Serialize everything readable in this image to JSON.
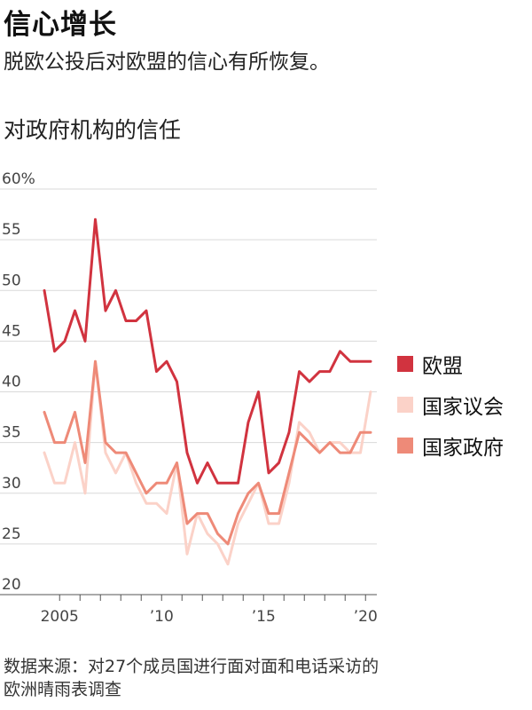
{
  "header": {
    "title": "信心增长",
    "subtitle": "脱欧公投后对欧盟的信心有所恢复。",
    "chart_heading": "对政府机构的信任"
  },
  "footer": {
    "source_line1": "数据来源：对27个成员国进行面对面和电话采访的",
    "source_line2": "欧洲晴雨表调查"
  },
  "chart_data": {
    "type": "line",
    "title": "对政府机构的信任",
    "xlabel": "",
    "ylabel": "",
    "ylim": [
      20,
      60
    ],
    "xlim": [
      2004.25,
      2020.25
    ],
    "y_ticks": [
      20,
      25,
      30,
      35,
      40,
      45,
      50,
      55,
      60
    ],
    "y_tick_labels": [
      "20",
      "25",
      "30",
      "35",
      "40",
      "45",
      "50",
      "55",
      "60%"
    ],
    "x_ticks": [
      2005,
      2006,
      2007,
      2008,
      2009,
      2010,
      2011,
      2012,
      2013,
      2014,
      2015,
      2016,
      2017,
      2018,
      2019,
      2020
    ],
    "x_tick_labels": [
      {
        "x": 2005,
        "label": "2005"
      },
      {
        "x": 2010,
        "label": "’10"
      },
      {
        "x": 2015,
        "label": "’15"
      },
      {
        "x": 2020,
        "label": "’20"
      }
    ],
    "grid": true,
    "legend_position": "right",
    "series": [
      {
        "name": "欧盟",
        "color": "#d1333f",
        "x": [
          2004.25,
          2004.75,
          2005.25,
          2005.75,
          2006.25,
          2006.75,
          2007.25,
          2007.75,
          2008.25,
          2008.75,
          2009.25,
          2009.75,
          2010.25,
          2010.75,
          2011.25,
          2011.75,
          2012.25,
          2012.75,
          2013.25,
          2013.75,
          2014.25,
          2014.75,
          2015.25,
          2015.75,
          2016.25,
          2016.75,
          2017.25,
          2017.75,
          2018.25,
          2018.75,
          2019.25,
          2019.75,
          2020.25
        ],
        "values": [
          50,
          44,
          45,
          48,
          45,
          57,
          48,
          50,
          47,
          47,
          48,
          42,
          43,
          41,
          34,
          31,
          33,
          31,
          31,
          31,
          37,
          40,
          32,
          33,
          36,
          42,
          41,
          42,
          42,
          44,
          43,
          43,
          43
        ]
      },
      {
        "name": "国家议会",
        "color": "#fbd2c8",
        "x": [
          2004.25,
          2004.75,
          2005.25,
          2005.75,
          2006.25,
          2006.75,
          2007.25,
          2007.75,
          2008.25,
          2008.75,
          2009.25,
          2009.75,
          2010.25,
          2010.75,
          2011.25,
          2011.75,
          2012.25,
          2012.75,
          2013.25,
          2013.75,
          2014.25,
          2014.75,
          2015.25,
          2015.75,
          2016.25,
          2016.75,
          2017.25,
          2017.75,
          2018.25,
          2018.75,
          2019.25,
          2019.75,
          2020.25
        ],
        "values": [
          34,
          31,
          31,
          35,
          30,
          43,
          34,
          32,
          34,
          31,
          29,
          29,
          28,
          33,
          24,
          28,
          26,
          25,
          23,
          27,
          29,
          31,
          27,
          27,
          31,
          37,
          36,
          34,
          35,
          35,
          34,
          34,
          40
        ]
      },
      {
        "name": "国家政府",
        "color": "#ee8a78",
        "x": [
          2004.25,
          2004.75,
          2005.25,
          2005.75,
          2006.25,
          2006.75,
          2007.25,
          2007.75,
          2008.25,
          2008.75,
          2009.25,
          2009.75,
          2010.25,
          2010.75,
          2011.25,
          2011.75,
          2012.25,
          2012.75,
          2013.25,
          2013.75,
          2014.25,
          2014.75,
          2015.25,
          2015.75,
          2016.25,
          2016.75,
          2017.25,
          2017.75,
          2018.25,
          2018.75,
          2019.25,
          2019.75,
          2020.25
        ],
        "values": [
          38,
          35,
          35,
          38,
          33,
          43,
          35,
          34,
          34,
          32,
          30,
          31,
          31,
          33,
          27,
          28,
          28,
          26,
          25,
          28,
          30,
          31,
          28,
          28,
          32,
          36,
          35,
          34,
          35,
          34,
          34,
          36,
          36
        ]
      }
    ]
  }
}
